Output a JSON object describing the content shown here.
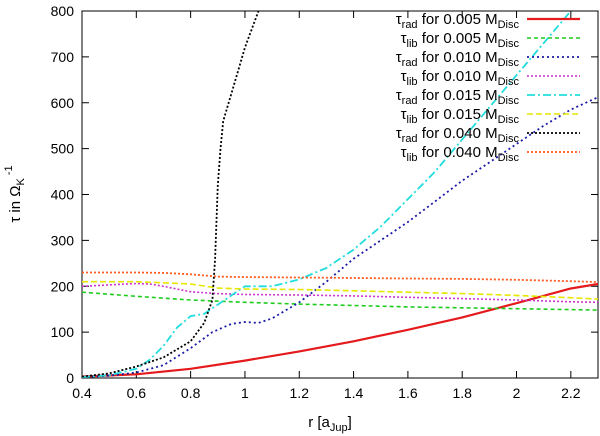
{
  "chart_data": {
    "type": "line",
    "xlabel": "r [a_Jup]",
    "ylabel": "τ in Ω_K^-1",
    "xlim": [
      0.4,
      2.3
    ],
    "ylim": [
      0,
      800
    ],
    "xticks": [
      0.4,
      0.6,
      0.8,
      1,
      1.2,
      1.4,
      1.6,
      1.8,
      2,
      2.2
    ],
    "yticks": [
      0,
      100,
      200,
      300,
      400,
      500,
      600,
      700,
      800
    ],
    "xtick_labels": [
      "0.4",
      "0.6",
      "0.8",
      "1",
      "1.2",
      "1.4",
      "1.6",
      "1.8",
      "2",
      "2.2"
    ],
    "ytick_labels": [
      "0",
      "100",
      "200",
      "300",
      "400",
      "500",
      "600",
      "700",
      "800"
    ],
    "legend_position": "top-right",
    "series": [
      {
        "name": "τ_rad for 0.005 M_Disc",
        "legend": {
          "sym": "τ",
          "sub": "rad",
          "mid": " for 0.005 M",
          "sub2": "Disc"
        },
        "color": "#e41a1c",
        "dash": "solid",
        "width": 2.2,
        "x": [
          0.4,
          0.6,
          0.8,
          1.0,
          1.2,
          1.4,
          1.6,
          1.8,
          2.0,
          2.2,
          2.3
        ],
        "y": [
          3,
          8,
          20,
          38,
          58,
          80,
          105,
          132,
          163,
          195,
          205
        ]
      },
      {
        "name": "τ_lib for 0.005 M_Disc",
        "legend": {
          "sym": "τ",
          "sub": "lib",
          "mid": " for 0.005 M",
          "sub2": "Disc"
        },
        "color": "#1ecc1e",
        "dash": "4,3",
        "width": 1.6,
        "x": [
          0.4,
          0.6,
          0.8,
          1.0,
          1.2,
          1.4,
          1.6,
          1.8,
          2.0,
          2.2,
          2.3
        ],
        "y": [
          187,
          178,
          170,
          165,
          161,
          158,
          155,
          153,
          151,
          149,
          148
        ]
      },
      {
        "name": "τ_rad for 0.010 M_Disc",
        "legend": {
          "sym": "τ",
          "sub": "rad",
          "mid": " for 0.010 M",
          "sub2": "Disc"
        },
        "color": "#1a1aa8",
        "dash": "2,3",
        "width": 1.8,
        "x": [
          0.4,
          0.5,
          0.6,
          0.7,
          0.8,
          0.88,
          0.95,
          1.0,
          1.05,
          1.1,
          1.2,
          1.3,
          1.4,
          1.5,
          1.6,
          1.7,
          1.8,
          1.9,
          2.0,
          2.1,
          2.2,
          2.3
        ],
        "y": [
          2,
          5,
          12,
          28,
          65,
          100,
          118,
          122,
          120,
          130,
          165,
          210,
          260,
          300,
          340,
          385,
          430,
          470,
          510,
          550,
          585,
          612
        ]
      },
      {
        "name": "τ_lib for 0.010 M_Disc",
        "legend": {
          "sym": "τ",
          "sub": "lib",
          "mid": " for 0.010 M",
          "sub2": "Disc"
        },
        "color": "#cc33cc",
        "dash": "2,2",
        "width": 1.6,
        "x": [
          0.4,
          0.5,
          0.6,
          0.65,
          0.7,
          0.8,
          0.9,
          1.0,
          1.2,
          1.4,
          1.6,
          1.8,
          2.0,
          2.2,
          2.3
        ],
        "y": [
          200,
          203,
          206,
          205,
          200,
          188,
          184,
          182,
          181,
          179,
          176,
          173,
          170,
          166,
          165
        ]
      },
      {
        "name": "τ_rad for 0.015 M_Disc",
        "legend": {
          "sym": "τ",
          "sub": "rad",
          "mid": " for 0.015 M",
          "sub2": "Disc"
        },
        "color": "#22dddd",
        "dash": "8,3,2,3",
        "width": 1.8,
        "x": [
          0.4,
          0.5,
          0.6,
          0.65,
          0.7,
          0.75,
          0.8,
          0.85,
          0.9,
          0.95,
          1.0,
          1.05,
          1.1,
          1.2,
          1.3,
          1.4,
          1.5,
          1.6,
          1.7,
          1.8,
          1.9,
          2.0,
          2.1,
          2.2
        ],
        "y": [
          2,
          6,
          20,
          40,
          70,
          110,
          135,
          140,
          160,
          180,
          200,
          200,
          200,
          215,
          240,
          280,
          330,
          390,
          450,
          520,
          590,
          660,
          730,
          800
        ]
      },
      {
        "name": "τ_lib for 0.015 M_Disc",
        "legend": {
          "sym": "τ",
          "sub": "lib",
          "mid": " for 0.015 M",
          "sub2": "Disc"
        },
        "color": "#e6e600",
        "dash": "6,3",
        "width": 1.6,
        "x": [
          0.4,
          0.6,
          0.8,
          0.9,
          1.0,
          1.2,
          1.4,
          1.6,
          1.8,
          2.0,
          2.2,
          2.3
        ],
        "y": [
          210,
          210,
          205,
          196,
          194,
          193,
          190,
          187,
          184,
          180,
          175,
          172
        ]
      },
      {
        "name": "τ_rad for 0.040 M_Disc",
        "legend": {
          "sym": "τ",
          "sub": "rad",
          "mid": " for 0.040 M",
          "sub2": "Disc"
        },
        "color": "#000000",
        "dash": "2,2",
        "width": 1.8,
        "x": [
          0.4,
          0.5,
          0.6,
          0.7,
          0.8,
          0.85,
          0.88,
          0.89,
          0.9,
          0.91,
          0.92,
          0.95,
          1.0,
          1.05
        ],
        "y": [
          3,
          10,
          25,
          45,
          80,
          120,
          170,
          260,
          420,
          500,
          560,
          620,
          720,
          800
        ]
      },
      {
        "name": "τ_lib for 0.040 M_Disc",
        "legend": {
          "sym": "τ",
          "sub": "lib",
          "mid": " for 0.040 M",
          "sub2": "Disc"
        },
        "color": "#ff5a1f",
        "dash": "2,2",
        "width": 1.8,
        "x": [
          0.4,
          0.6,
          0.7,
          0.8,
          0.9,
          1.0,
          1.2,
          1.4,
          1.6,
          1.8,
          2.0,
          2.2,
          2.3
        ],
        "y": [
          230,
          230,
          229,
          226,
          221,
          220,
          219,
          218,
          217,
          216,
          214,
          211,
          209
        ]
      }
    ]
  }
}
